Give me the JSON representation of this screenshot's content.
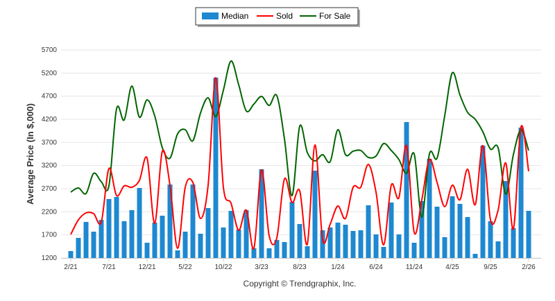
{
  "chart_data": {
    "type": "bar+line",
    "title": "",
    "xlabel": "",
    "ylabel": "Average Price (In $,000)",
    "ylim": [
      1200,
      5700
    ],
    "yticks": [
      1200,
      1700,
      2200,
      2700,
      3200,
      3700,
      4200,
      4700,
      5200,
      5700
    ],
    "xtick_labels": [
      "2/21",
      "7/21",
      "12/21",
      "5/22",
      "10/22",
      "3/23",
      "8/23",
      "1/24",
      "6/24",
      "11/24",
      "4/25",
      "9/25",
      "2/26"
    ],
    "xtick_step_months": 5,
    "months_count": 61,
    "grid": true,
    "legend_position": "top-center",
    "colors": {
      "median": "#1E88D0",
      "sold": "#FF0000",
      "for_sale": "#006400"
    },
    "series": [
      {
        "name": "Median",
        "type": "bar",
        "values": [
          1350,
          1635,
          1980,
          1770,
          2025,
          2475,
          2520,
          1995,
          2235,
          2715,
          1530,
          1965,
          2115,
          2790,
          1365,
          1770,
          2790,
          1725,
          2280,
          5100,
          1860,
          2220,
          1815,
          2235,
          1410,
          3120,
          1410,
          1590,
          1545,
          2415,
          1935,
          1455,
          3090,
          1800,
          1860,
          1965,
          1920,
          1785,
          1800,
          2340,
          1710,
          1440,
          2400,
          1710,
          4140,
          1530,
          2430,
          3345,
          2310,
          1650,
          2535,
          2370,
          2085,
          1290,
          3630,
          1995,
          1560,
          2865,
          1845,
          4020,
          2220
        ]
      },
      {
        "name": "Sold",
        "type": "line",
        "values": [
          1710,
          2025,
          2175,
          2160,
          1980,
          3135,
          2550,
          2760,
          2730,
          2880,
          3360,
          1950,
          3510,
          2775,
          1410,
          2730,
          2835,
          2055,
          2775,
          5100,
          2730,
          2385,
          1800,
          2235,
          1410,
          3105,
          1680,
          1635,
          2910,
          2400,
          2655,
          1500,
          3645,
          1605,
          1935,
          2325,
          2055,
          2730,
          2730,
          3225,
          2625,
          1485,
          2775,
          2505,
          3630,
          1755,
          2460,
          3330,
          2835,
          2310,
          2775,
          2460,
          3120,
          2355,
          3630,
          2025,
          2235,
          3255,
          1830,
          4035,
          3075
        ]
      },
      {
        "name": "For Sale",
        "type": "line",
        "values": [
          2625,
          2715,
          2595,
          3030,
          2850,
          2760,
          4425,
          4185,
          4920,
          4245,
          4620,
          4275,
          3585,
          3360,
          3885,
          3975,
          3735,
          4335,
          4665,
          4260,
          4830,
          5460,
          4950,
          4380,
          4530,
          4695,
          4500,
          4710,
          3780,
          2550,
          4050,
          3480,
          3300,
          3435,
          3285,
          3975,
          3435,
          3510,
          3525,
          3375,
          3405,
          3675,
          3525,
          3330,
          3030,
          3450,
          2085,
          3450,
          3360,
          4275,
          5205,
          4725,
          4350,
          4200,
          3930,
          3555,
          3585,
          2580,
          3435,
          3975,
          3525
        ]
      }
    ],
    "footer": "Copyright © Trendgraphix, Inc."
  }
}
